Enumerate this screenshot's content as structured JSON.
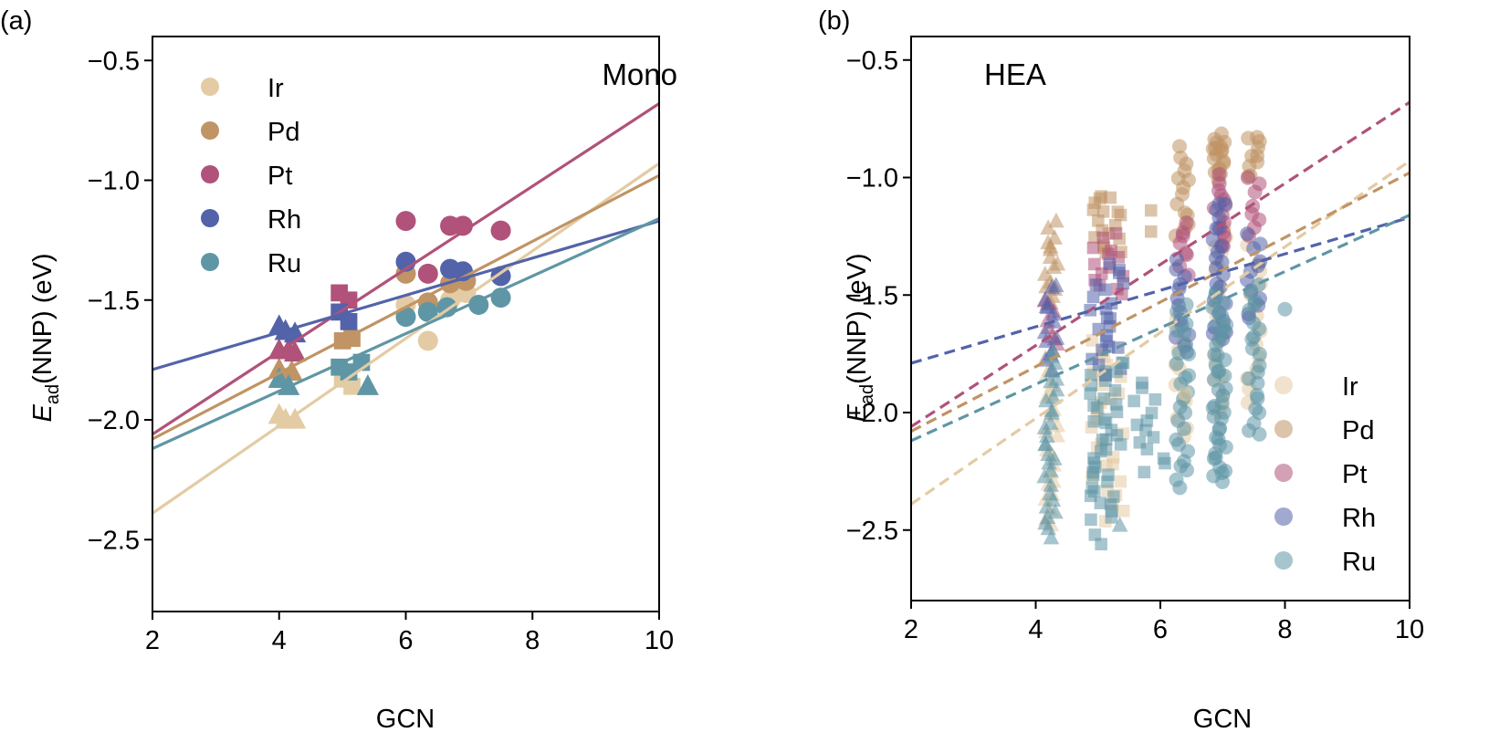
{
  "colors": {
    "Ir": "#e3cba3",
    "Pd": "#c09465",
    "Pt": "#b0527a",
    "Rh": "#5363a9",
    "Ru": "#5f96a5"
  },
  "chart_data": [
    {
      "type": "scatter",
      "panel_label": "(a)",
      "corner_label": "Mono",
      "xlabel": "GCN",
      "ylabel_main": "E",
      "ylabel_sub": "ad",
      "ylabel_rest": "(NNP) (eV)",
      "xlim": [
        2,
        10
      ],
      "ylim": [
        -2.8,
        -0.4
      ],
      "xticks": [
        "2",
        "4",
        "6",
        "8",
        "10"
      ],
      "yticks": [
        "−0.5",
        "−1.0",
        "−1.5",
        "−2.0",
        "−2.5"
      ],
      "legend_position": "upper-left",
      "legend": [
        "Ir",
        "Pd",
        "Pt",
        "Rh",
        "Ru"
      ],
      "fit_lines": [
        {
          "name": "Ir",
          "x": [
            2,
            10
          ],
          "y": [
            -2.39,
            -0.93
          ]
        },
        {
          "name": "Pd",
          "x": [
            2,
            10
          ],
          "y": [
            -2.08,
            -0.98
          ]
        },
        {
          "name": "Pt",
          "x": [
            2,
            10
          ],
          "y": [
            -2.06,
            -0.68
          ]
        },
        {
          "name": "Rh",
          "x": [
            2,
            10
          ],
          "y": [
            -1.79,
            -1.17
          ]
        },
        {
          "name": "Ru",
          "x": [
            2,
            10
          ],
          "y": [
            -2.12,
            -1.16
          ]
        }
      ],
      "series": [
        {
          "name": "Ir",
          "points": [
            {
              "x": 4.0,
              "y": -1.98,
              "m": "tri"
            },
            {
              "x": 4.1,
              "y": -2.0,
              "m": "tri"
            },
            {
              "x": 4.25,
              "y": -2.0,
              "m": "tri"
            },
            {
              "x": 5.0,
              "y": -1.83,
              "m": "sq"
            },
            {
              "x": 5.15,
              "y": -1.86,
              "m": "sq"
            },
            {
              "x": 6.0,
              "y": -1.52,
              "m": "circ"
            },
            {
              "x": 6.35,
              "y": -1.67,
              "m": "circ"
            },
            {
              "x": 6.7,
              "y": -1.5,
              "m": "circ"
            },
            {
              "x": 6.95,
              "y": -1.47,
              "m": "circ"
            }
          ]
        },
        {
          "name": "Pd",
          "points": [
            {
              "x": 4.0,
              "y": -1.79,
              "m": "tri"
            },
            {
              "x": 4.2,
              "y": -1.8,
              "m": "tri"
            },
            {
              "x": 5.0,
              "y": -1.67,
              "m": "sq"
            },
            {
              "x": 5.15,
              "y": -1.66,
              "m": "sq"
            },
            {
              "x": 6.0,
              "y": -1.39,
              "m": "circ"
            },
            {
              "x": 6.35,
              "y": -1.51,
              "m": "circ"
            },
            {
              "x": 6.7,
              "y": -1.43,
              "m": "circ"
            },
            {
              "x": 6.95,
              "y": -1.42,
              "m": "circ"
            }
          ]
        },
        {
          "name": "Pt",
          "points": [
            {
              "x": 4.0,
              "y": -1.71,
              "m": "tri"
            },
            {
              "x": 4.15,
              "y": -1.71,
              "m": "tri"
            },
            {
              "x": 4.25,
              "y": -1.72,
              "m": "tri"
            },
            {
              "x": 4.95,
              "y": -1.47,
              "m": "sq"
            },
            {
              "x": 5.1,
              "y": -1.5,
              "m": "sq"
            },
            {
              "x": 6.0,
              "y": -1.17,
              "m": "circ"
            },
            {
              "x": 6.35,
              "y": -1.39,
              "m": "circ"
            },
            {
              "x": 6.7,
              "y": -1.19,
              "m": "circ"
            },
            {
              "x": 6.9,
              "y": -1.19,
              "m": "circ"
            },
            {
              "x": 7.5,
              "y": -1.21,
              "m": "circ"
            }
          ]
        },
        {
          "name": "Rh",
          "points": [
            {
              "x": 4.0,
              "y": -1.61,
              "m": "tri"
            },
            {
              "x": 4.1,
              "y": -1.63,
              "m": "tri"
            },
            {
              "x": 4.25,
              "y": -1.64,
              "m": "tri"
            },
            {
              "x": 4.95,
              "y": -1.55,
              "m": "sq"
            },
            {
              "x": 5.1,
              "y": -1.59,
              "m": "sq"
            },
            {
              "x": 6.0,
              "y": -1.34,
              "m": "circ"
            },
            {
              "x": 6.7,
              "y": -1.37,
              "m": "circ"
            },
            {
              "x": 6.9,
              "y": -1.38,
              "m": "circ"
            },
            {
              "x": 7.5,
              "y": -1.4,
              "m": "circ"
            }
          ]
        },
        {
          "name": "Ru",
          "points": [
            {
              "x": 4.0,
              "y": -1.83,
              "m": "tri"
            },
            {
              "x": 4.15,
              "y": -1.86,
              "m": "tri"
            },
            {
              "x": 5.4,
              "y": -1.86,
              "m": "tri"
            },
            {
              "x": 4.95,
              "y": -1.78,
              "m": "sq"
            },
            {
              "x": 5.1,
              "y": -1.8,
              "m": "sq"
            },
            {
              "x": 5.3,
              "y": -1.76,
              "m": "sq"
            },
            {
              "x": 6.0,
              "y": -1.57,
              "m": "circ"
            },
            {
              "x": 6.35,
              "y": -1.55,
              "m": "circ"
            },
            {
              "x": 6.65,
              "y": -1.53,
              "m": "circ"
            },
            {
              "x": 7.15,
              "y": -1.52,
              "m": "circ"
            },
            {
              "x": 7.5,
              "y": -1.49,
              "m": "circ"
            }
          ]
        }
      ]
    },
    {
      "type": "scatter",
      "panel_label": "(b)",
      "corner_label": "HEA",
      "xlabel": "GCN",
      "ylabel_main": "E",
      "ylabel_sub": "ad",
      "ylabel_rest": "(NNP) (eV)",
      "xlim": [
        2,
        10
      ],
      "ylim": [
        -2.8,
        -0.4
      ],
      "xticks": [
        "2",
        "4",
        "6",
        "8",
        "10"
      ],
      "yticks": [
        "−0.5",
        "−1.0",
        "−1.5",
        "−2.0",
        "−2.5"
      ],
      "legend_position": "lower-right",
      "legend": [
        "Ir",
        "Pd",
        "Pt",
        "Rh",
        "Ru"
      ],
      "fit_lines": [
        {
          "name": "Ir",
          "x": [
            2,
            10
          ],
          "y": [
            -2.39,
            -0.93
          ]
        },
        {
          "name": "Pd",
          "x": [
            2,
            10
          ],
          "y": [
            -2.08,
            -0.98
          ]
        },
        {
          "name": "Pt",
          "x": [
            2,
            10
          ],
          "y": [
            -2.06,
            -0.68
          ]
        },
        {
          "name": "Rh",
          "x": [
            2,
            10
          ],
          "y": [
            -1.79,
            -1.17
          ]
        },
        {
          "name": "Ru",
          "x": [
            2,
            10
          ],
          "y": [
            -2.12,
            -1.16
          ]
        }
      ],
      "columns": [
        {
          "name": "Ir",
          "x": 4.25,
          "m": "tri",
          "y": [
            -2.48,
            -1.78
          ],
          "n": 22
        },
        {
          "name": "Pd",
          "x": 4.25,
          "m": "tri",
          "y": [
            -1.55,
            -1.2
          ],
          "n": 16
        },
        {
          "name": "Pt",
          "x": 4.25,
          "m": "tri",
          "y": [
            -1.72,
            -1.52
          ],
          "n": 8
        },
        {
          "name": "Rh",
          "x": 4.25,
          "m": "tri",
          "y": [
            -1.82,
            -1.45
          ],
          "n": 14
        },
        {
          "name": "Ru",
          "x": 4.25,
          "m": "tri",
          "y": [
            -2.52,
            -1.75
          ],
          "n": 30
        },
        {
          "name": "Ir",
          "x": 5.15,
          "m": "sq",
          "y": [
            -2.45,
            -1.7
          ],
          "n": 26
        },
        {
          "name": "Pd",
          "x": 5.15,
          "m": "sq",
          "y": [
            -1.32,
            -1.07
          ],
          "n": 18
        },
        {
          "name": "Pt",
          "x": 5.15,
          "m": "sq",
          "y": [
            -1.5,
            -1.25
          ],
          "n": 14
        },
        {
          "name": "Rh",
          "x": 5.15,
          "m": "sq",
          "y": [
            -1.85,
            -1.38
          ],
          "n": 24
        },
        {
          "name": "Ru",
          "x": 5.15,
          "m": "sq",
          "y": [
            -2.45,
            -1.78
          ],
          "n": 40
        },
        {
          "name": "Ru",
          "x": 5.85,
          "m": "sq",
          "y": [
            -2.25,
            -1.88
          ],
          "n": 14
        },
        {
          "name": "Ir",
          "x": 6.35,
          "m": "circ",
          "y": [
            -2.1,
            -1.6
          ],
          "n": 12
        },
        {
          "name": "Pd",
          "x": 6.35,
          "m": "circ",
          "y": [
            -1.25,
            -0.88
          ],
          "n": 14
        },
        {
          "name": "Pt",
          "x": 6.35,
          "m": "circ",
          "y": [
            -1.4,
            -1.2
          ],
          "n": 8
        },
        {
          "name": "Rh",
          "x": 6.35,
          "m": "circ",
          "y": [
            -1.75,
            -1.35
          ],
          "n": 14
        },
        {
          "name": "Ru",
          "x": 6.35,
          "m": "circ",
          "y": [
            -2.32,
            -1.55
          ],
          "n": 26
        },
        {
          "name": "Ir",
          "x": 6.95,
          "m": "circ",
          "y": [
            -2.0,
            -1.2
          ],
          "n": 20
        },
        {
          "name": "Pd",
          "x": 6.95,
          "m": "circ",
          "y": [
            -1.0,
            -0.82
          ],
          "n": 18
        },
        {
          "name": "Pt",
          "x": 6.95,
          "m": "circ",
          "y": [
            -1.3,
            -1.0
          ],
          "n": 14
        },
        {
          "name": "Rh",
          "x": 6.95,
          "m": "circ",
          "y": [
            -1.7,
            -1.1
          ],
          "n": 24
        },
        {
          "name": "Ru",
          "x": 6.95,
          "m": "circ",
          "y": [
            -2.3,
            -1.5
          ],
          "n": 44
        },
        {
          "name": "Ir",
          "x": 7.5,
          "m": "circ",
          "y": [
            -1.95,
            -1.3
          ],
          "n": 14
        },
        {
          "name": "Pd",
          "x": 7.5,
          "m": "circ",
          "y": [
            -1.0,
            -0.82
          ],
          "n": 10
        },
        {
          "name": "Pt",
          "x": 7.5,
          "m": "circ",
          "y": [
            -1.25,
            -1.0
          ],
          "n": 8
        },
        {
          "name": "Rh",
          "x": 7.5,
          "m": "circ",
          "y": [
            -1.6,
            -1.25
          ],
          "n": 12
        },
        {
          "name": "Ru",
          "x": 7.5,
          "m": "circ",
          "y": [
            -2.1,
            -1.45
          ],
          "n": 22
        }
      ],
      "extra_points": [
        {
          "name": "Pd",
          "x": 5.85,
          "y": -1.14,
          "m": "sq"
        },
        {
          "name": "Pd",
          "x": 5.85,
          "y": -1.23,
          "m": "sq"
        },
        {
          "name": "Ru",
          "x": 8.0,
          "y": -1.56,
          "m": "circ"
        },
        {
          "name": "Ir",
          "x": 6.4,
          "y": -1.92,
          "m": "circ"
        },
        {
          "name": "Ru",
          "x": 4.95,
          "y": -2.52,
          "m": "sq"
        },
        {
          "name": "Ru",
          "x": 5.05,
          "y": -2.56,
          "m": "sq"
        },
        {
          "name": "Ru",
          "x": 5.35,
          "y": -2.48,
          "m": "tri"
        }
      ]
    }
  ]
}
